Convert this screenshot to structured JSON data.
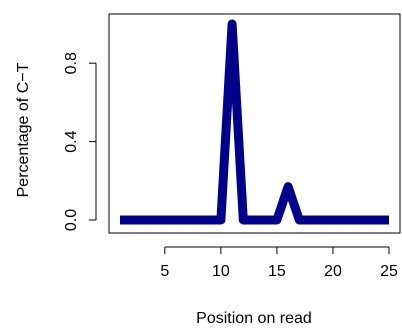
{
  "chart_data": {
    "type": "line",
    "xlabel": "Position on read",
    "ylabel": "Percentage of C−T",
    "xlim": [
      1,
      25
    ],
    "ylim": [
      0,
      1
    ],
    "x_ticks": [
      5,
      10,
      15,
      20,
      25
    ],
    "y_ticks": [
      0.0,
      0.4,
      0.8
    ],
    "y_tick_labels": [
      "0.0",
      "0.4",
      "0.8"
    ],
    "grid": false,
    "series": [
      {
        "color": "#00008b",
        "x": [
          1,
          2,
          3,
          4,
          5,
          6,
          7,
          8,
          9,
          10,
          11,
          12,
          13,
          14,
          15,
          16,
          17,
          18,
          19,
          20,
          21,
          22,
          23,
          24,
          25
        ],
        "values": [
          0,
          0,
          0,
          0,
          0,
          0,
          0,
          0,
          0,
          0,
          1.0,
          0,
          0,
          0,
          0,
          0.17,
          0,
          0,
          0,
          0,
          0,
          0,
          0,
          0,
          0
        ]
      }
    ]
  }
}
